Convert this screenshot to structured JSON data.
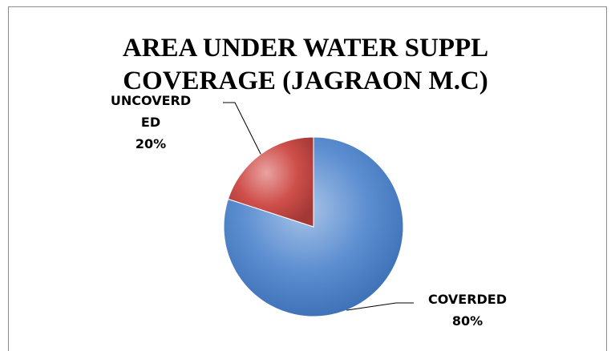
{
  "chart_data": {
    "type": "pie",
    "title_lines": [
      "AREA UNDER WATER SUPPL",
      "COVERAGE (JAGRAON M.C)"
    ],
    "slices": [
      {
        "name": "COVERDED",
        "label_lines": [
          "COVERDED"
        ],
        "percent_text": "80%",
        "value": 80,
        "color": "#4f81bd"
      },
      {
        "name": "UNCOVERDED",
        "label_lines": [
          "UNCOVERD",
          "ED"
        ],
        "percent_text": "20%",
        "value": 20,
        "color": "#c0504d"
      }
    ],
    "legend": "none"
  }
}
